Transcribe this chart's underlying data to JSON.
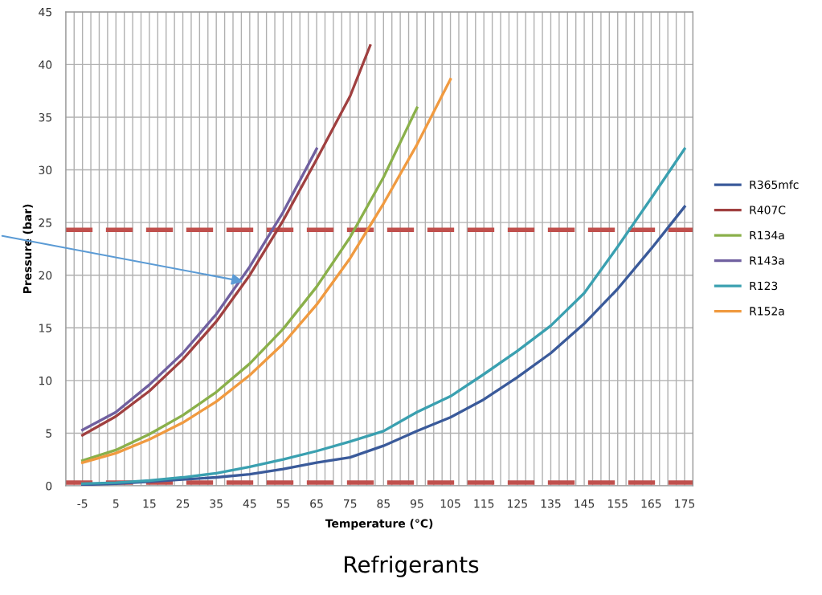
{
  "chart_data": {
    "type": "line",
    "title": "Refrigerants",
    "xlabel": "Temperature (°C)",
    "ylabel": "Pressure (bar)",
    "xlim": [
      -10,
      177.5
    ],
    "ylim": [
      0,
      45
    ],
    "yticks": [
      0,
      5,
      10,
      15,
      20,
      25,
      30,
      35,
      40,
      45
    ],
    "xticks": [
      {
        "value": -10,
        "label": null
      },
      {
        "value": -7.5,
        "label": null
      },
      -5,
      {
        "value": -2.5,
        "label": null
      },
      {
        "value": 0,
        "label": null
      },
      {
        "value": 2.5,
        "label": null
      },
      5,
      {
        "value": 7.5,
        "label": null
      },
      {
        "value": 10,
        "label": null
      },
      {
        "value": 12.5,
        "label": null
      },
      15,
      {
        "value": 17.5,
        "label": null
      },
      {
        "value": 20,
        "label": null
      },
      {
        "value": 22.5,
        "label": null
      },
      25,
      {
        "value": 27.5,
        "label": null
      },
      {
        "value": 30,
        "label": null
      },
      {
        "value": 32.5,
        "label": null
      },
      35,
      {
        "value": 37.5,
        "label": null
      },
      {
        "value": 40,
        "label": null
      },
      {
        "value": 42.5,
        "label": null
      },
      45,
      {
        "value": 47.5,
        "label": null
      },
      {
        "value": 50,
        "label": null
      },
      {
        "value": 52.5,
        "label": null
      },
      55,
      {
        "value": 57.5,
        "label": null
      },
      {
        "value": 60,
        "label": null
      },
      {
        "value": 62.5,
        "label": null
      },
      65,
      {
        "value": 67.5,
        "label": null
      },
      {
        "value": 70,
        "label": null
      },
      {
        "value": 72.5,
        "label": null
      },
      75,
      {
        "value": 77.5,
        "label": null
      },
      {
        "value": 80,
        "label": null
      },
      {
        "value": 82.5,
        "label": null
      },
      85,
      {
        "value": 87.5,
        "label": null
      },
      {
        "value": 90,
        "label": null
      },
      {
        "value": 92.5,
        "label": null
      },
      95,
      {
        "value": 97.5,
        "label": null
      },
      {
        "value": 100,
        "label": null
      },
      {
        "value": 102.5,
        "label": null
      },
      105,
      {
        "value": 107.5,
        "label": null
      },
      {
        "value": 110,
        "label": null
      },
      {
        "value": 112.5,
        "label": null
      },
      115,
      {
        "value": 117.5,
        "label": null
      },
      {
        "value": 120,
        "label": null
      },
      {
        "value": 122.5,
        "label": null
      },
      125,
      {
        "value": 127.5,
        "label": null
      },
      {
        "value": 130,
        "label": null
      },
      {
        "value": 132.5,
        "label": null
      },
      135,
      {
        "value": 137.5,
        "label": null
      },
      {
        "value": 140,
        "label": null
      },
      {
        "value": 142.5,
        "label": null
      },
      145,
      {
        "value": 147.5,
        "label": null
      },
      {
        "value": 150,
        "label": null
      },
      {
        "value": 152.5,
        "label": null
      },
      155,
      {
        "value": 157.5,
        "label": null
      },
      {
        "value": 160,
        "label": null
      },
      {
        "value": 162.5,
        "label": null
      },
      165,
      {
        "value": 167.5,
        "label": null
      },
      {
        "value": 170,
        "label": null
      },
      {
        "value": 172.5,
        "label": null
      },
      175,
      {
        "value": 177.5,
        "label": null
      }
    ],
    "grid": true,
    "legend": "right",
    "marker": "none",
    "line_style": "solid",
    "ref_lines": [
      {
        "axis": "y",
        "value": 24.3,
        "label": null,
        "color": "#c0504d",
        "line_style": "dashed"
      },
      {
        "axis": "y",
        "value": 0.3,
        "label": null,
        "color": "#c0504d",
        "line_style": "dashed"
      }
    ],
    "series": [
      {
        "name": "R365mfc",
        "color": "#3a5a9a",
        "x": [
          -5,
          5,
          15,
          25,
          35,
          45,
          55,
          65,
          75,
          85,
          95,
          105,
          115,
          125,
          135,
          145,
          155,
          165,
          175
        ],
        "values": [
          0.1,
          0.2,
          0.4,
          0.6,
          0.8,
          1.1,
          1.6,
          2.2,
          2.7,
          3.8,
          5.2,
          6.5,
          8.2,
          10.3,
          12.6,
          15.4,
          18.7,
          22.5,
          26.5
        ]
      },
      {
        "name": "R407C",
        "color": "#a04040",
        "x": [
          -5,
          5,
          15,
          25,
          35,
          45,
          55,
          65,
          75,
          81
        ],
        "values": [
          4.8,
          6.6,
          9.0,
          12.0,
          15.6,
          20.0,
          25.2,
          31.0,
          37.0,
          41.8
        ]
      },
      {
        "name": "R134a",
        "color": "#8ab04a",
        "x": [
          -5,
          5,
          15,
          25,
          35,
          45,
          55,
          65,
          75,
          85,
          95
        ],
        "values": [
          2.4,
          3.4,
          4.9,
          6.7,
          8.9,
          11.6,
          14.9,
          18.9,
          23.6,
          29.3,
          35.9
        ]
      },
      {
        "name": "R143a",
        "color": "#7060a0",
        "x": [
          -5,
          5,
          15,
          25,
          35,
          45,
          55,
          65
        ],
        "values": [
          5.3,
          7.0,
          9.6,
          12.6,
          16.3,
          20.8,
          26.0,
          32.0
        ]
      },
      {
        "name": "R123",
        "color": "#3aa0b0",
        "x": [
          -5,
          5,
          15,
          25,
          35,
          45,
          55,
          65,
          75,
          85,
          95,
          105,
          115,
          125,
          135,
          145,
          155,
          165,
          175
        ],
        "values": [
          0.2,
          0.3,
          0.5,
          0.8,
          1.2,
          1.8,
          2.5,
          3.3,
          4.2,
          5.2,
          7.0,
          8.5,
          10.6,
          12.8,
          15.2,
          18.3,
          22.7,
          27.3,
          32.0
        ]
      },
      {
        "name": "R152a",
        "color": "#f09a40",
        "x": [
          -5,
          5,
          15,
          25,
          35,
          45,
          55,
          65,
          75,
          85,
          95,
          105
        ],
        "values": [
          2.2,
          3.1,
          4.4,
          6.0,
          8.0,
          10.5,
          13.5,
          17.2,
          21.6,
          26.8,
          32.4,
          38.6
        ]
      }
    ]
  }
}
